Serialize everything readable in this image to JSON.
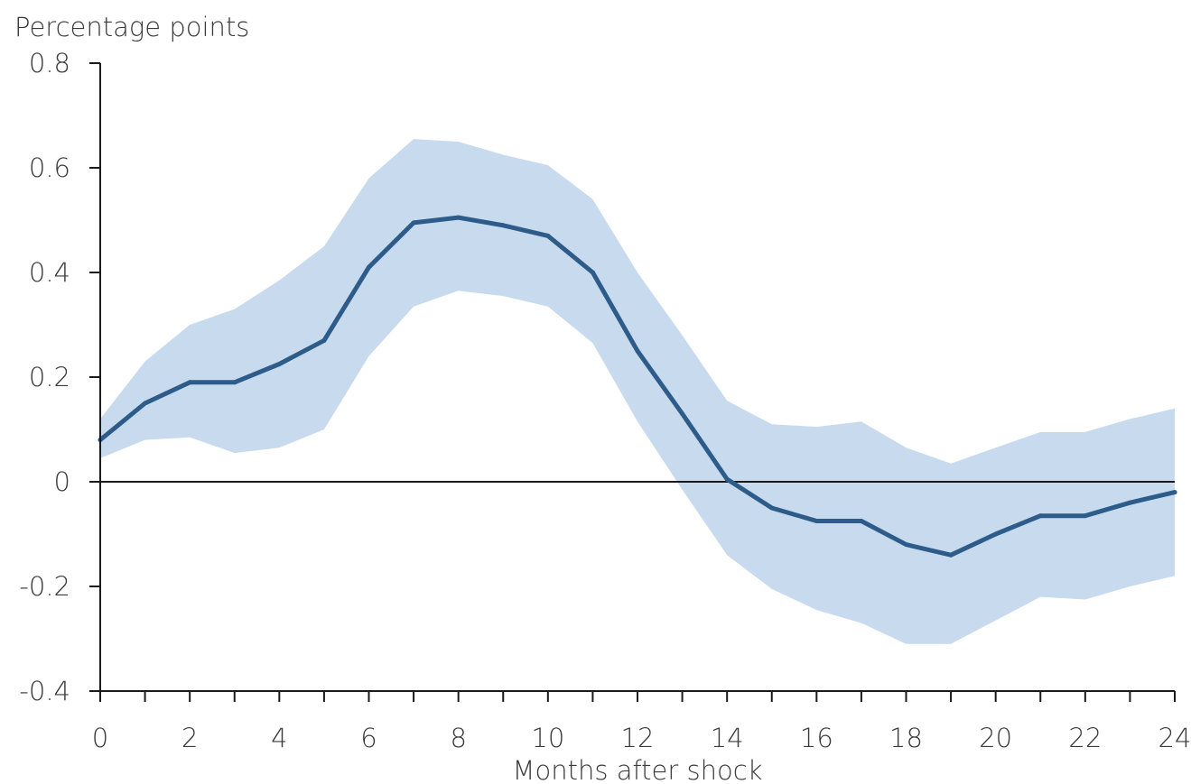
{
  "chart_data": {
    "type": "line",
    "title": "",
    "ylabel": "Percentage points",
    "xlabel": "Months after shock",
    "x": [
      0,
      1,
      2,
      3,
      4,
      5,
      6,
      7,
      8,
      9,
      10,
      11,
      12,
      13,
      14,
      15,
      16,
      17,
      18,
      19,
      20,
      21,
      22,
      23,
      24
    ],
    "xticks": [
      "0",
      "2",
      "4",
      "6",
      "8",
      "10",
      "12",
      "14",
      "16",
      "18",
      "20",
      "22",
      "24"
    ],
    "yticks": [
      "0.8",
      "0.6",
      "0.4",
      "0.2",
      "0",
      "-0.2",
      "-0.4"
    ],
    "xlim": [
      0,
      24
    ],
    "ylim": [
      -0.4,
      0.8
    ],
    "grid": false,
    "zero_line": true,
    "series": [
      {
        "values": [
          0.08,
          0.15,
          0.19,
          0.19,
          0.225,
          0.27,
          0.41,
          0.495,
          0.505,
          0.49,
          0.47,
          0.4,
          0.25,
          0.13,
          0.005,
          -0.05,
          -0.075,
          -0.075,
          -0.12,
          -0.14,
          -0.1,
          -0.065,
          -0.065,
          -0.04,
          -0.02
        ]
      }
    ],
    "band": {
      "upper": [
        0.12,
        0.23,
        0.3,
        0.33,
        0.385,
        0.45,
        0.58,
        0.655,
        0.65,
        0.625,
        0.605,
        0.54,
        0.4,
        0.28,
        0.155,
        0.11,
        0.105,
        0.115,
        0.065,
        0.035,
        0.065,
        0.095,
        0.095,
        0.12,
        0.14
      ],
      "lower": [
        0.045,
        0.08,
        0.085,
        0.055,
        0.065,
        0.1,
        0.24,
        0.335,
        0.365,
        0.355,
        0.335,
        0.265,
        0.115,
        -0.015,
        -0.14,
        -0.205,
        -0.245,
        -0.27,
        -0.31,
        -0.31,
        -0.265,
        -0.22,
        -0.225,
        -0.2,
        -0.18
      ]
    },
    "colors": {
      "line": "#2e5c8a",
      "band": "#c8dbee",
      "axis": "#1a1a1a",
      "text": "#3a3a3a"
    }
  }
}
